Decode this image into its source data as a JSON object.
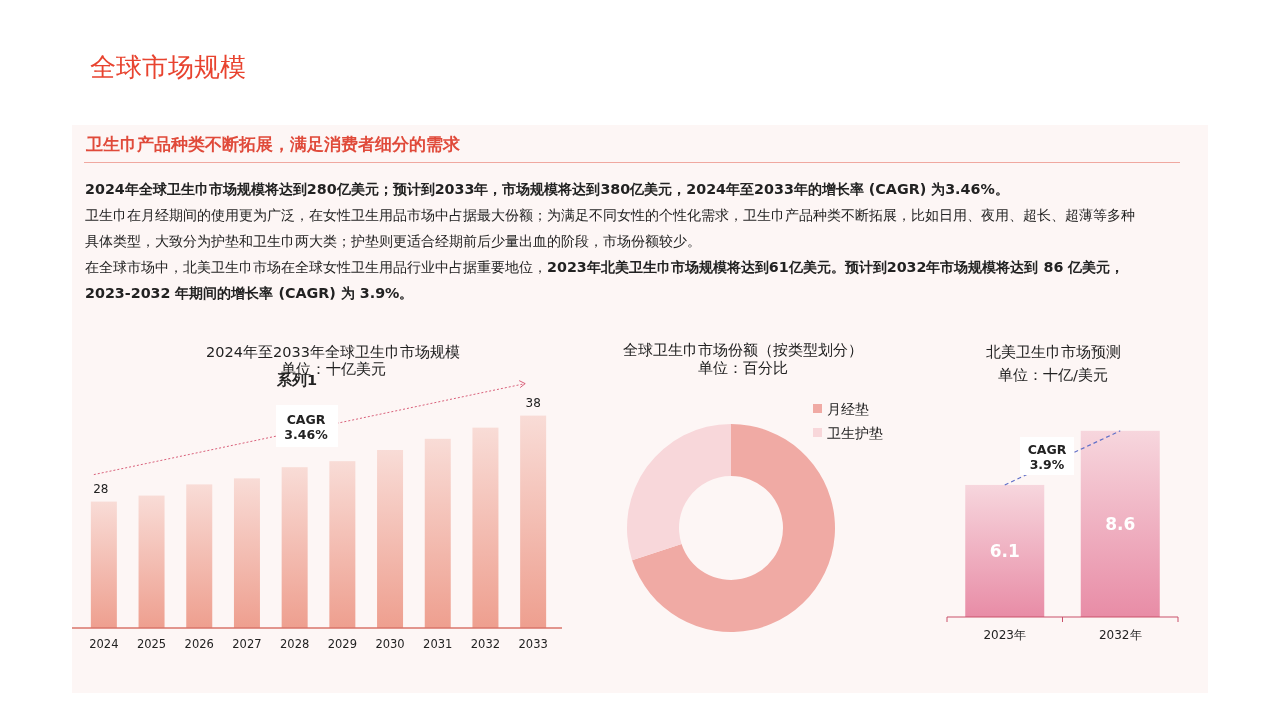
{
  "chart_data": [
    {
      "type": "other",
      "title": "全球市场规模",
      "subtitle": "卫生巾产品种类不断拓展，满足消费者细分的需求",
      "annotations": [
        "2024年全球卫生巾市场规模将达到280亿美元；预计到2033年，市场规模将达到380亿美元，2024年至2033年的增长率 (CAGR) 为3.46%。",
        "卫生巾在月经期间的使用更为广泛，在女性卫生用品市场中占据最大份额；为满足不同女性的个性化需求，卫生巾产品种类不断拓展，比如日用、夜用、超长、超薄等多种具体类型，大致分为护垫和卫生巾两大类；护垫则更适合经期前后少量出血的阶段，市场份额较少。",
        "在全球市场中，北美卫生巾市场在全球女性卫生用品行业中占据重要地位，**2023年北美卫生巾市场规模将达到61亿美元。预计到2032年市场规模将达到 86 亿美元，2023-2032 年期间的增长率 (CAGR) 为 3.9%。**"
      ]
    },
    {
      "type": "bar",
      "title": "2024年至2033年全球卫生巾市场规模",
      "subtitle": "单位：十亿美元",
      "categories": [
        "2024",
        "2025",
        "2026",
        "2027",
        "2028",
        "2029",
        "2030",
        "2031",
        "2032",
        "2033"
      ],
      "values": [
        28,
        28.7,
        30.0,
        30.7,
        32.0,
        32.7,
        34.0,
        35.3,
        36.6,
        38
      ],
      "value_labels": [
        "28",
        null,
        null,
        null,
        null,
        null,
        null,
        null,
        null,
        "38"
      ],
      "color": "#ee9f8f",
      "ylim": [
        13.3,
        38
      ],
      "annotations": [
        "系列1",
        "CAGR 3.46%"
      ]
    },
    {
      "type": "donut",
      "title": "全球卫生巾市场份额（按类型划分）",
      "subtitle": "单位：百分比",
      "categories": [
        "月经垫",
        "卫生护垫"
      ],
      "values": [
        70,
        30
      ],
      "colors": [
        "#f0aaa4",
        "#f8d7da"
      ],
      "legend": "top right"
    },
    {
      "type": "bar",
      "title": "北美卫生巾市场预测",
      "subtitle": "单位：十亿/美元",
      "categories": [
        "2023年",
        "2032年"
      ],
      "series": [
        {
          "type": "bar",
          "color": "#e88ca6",
          "values": [
            6.1,
            8.6
          ],
          "value_labels": [
            "6.1",
            "8.6"
          ]
        },
        {
          "type": "line",
          "color": "#6070c8",
          "line_style": "dashed",
          "values": [
            6.1,
            8.6
          ]
        }
      ],
      "annotations": [
        "CAGR 3.9%"
      ]
    }
  ]
}
